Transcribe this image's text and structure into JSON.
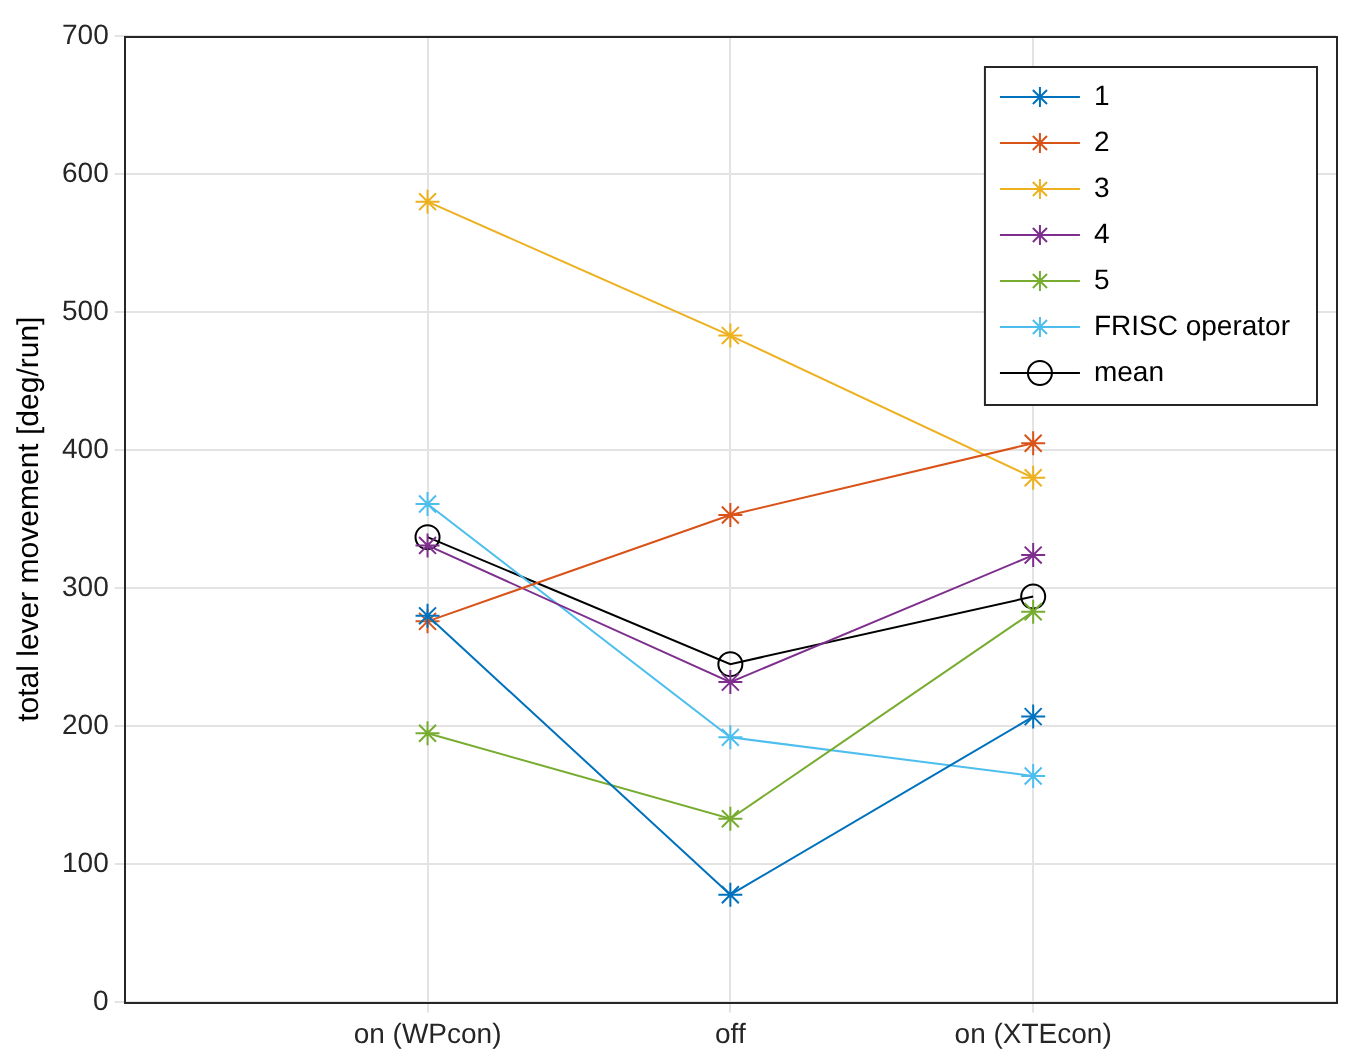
{
  "chart_data": {
    "type": "line",
    "ylabel": "total lever movement [deg/run]",
    "categories": [
      "on (WPcon)",
      "off",
      "on (XTEcon)"
    ],
    "ylim": [
      0,
      700
    ],
    "yticks": [
      0,
      100,
      200,
      300,
      400,
      500,
      600,
      700
    ],
    "grid": true,
    "legend": "top right",
    "marker": "cross",
    "series": [
      {
        "name": "1",
        "color": "#0072bd",
        "values": [
          280,
          78,
          207
        ]
      },
      {
        "name": "2",
        "color": "#d95319",
        "values": [
          276,
          353,
          405
        ]
      },
      {
        "name": "3",
        "color": "#edb120",
        "values": [
          580,
          483,
          380
        ]
      },
      {
        "name": "4",
        "color": "#7e2f8e",
        "values": [
          331,
          232,
          324
        ]
      },
      {
        "name": "5",
        "color": "#77ac30",
        "values": [
          195,
          133,
          283
        ]
      },
      {
        "name": "FRISC operator",
        "color": "#4dbeee",
        "values": [
          361,
          192,
          164
        ]
      },
      {
        "name": "mean",
        "color": "#000000",
        "marker": "circle",
        "values": [
          337,
          245,
          294
        ]
      }
    ]
  }
}
